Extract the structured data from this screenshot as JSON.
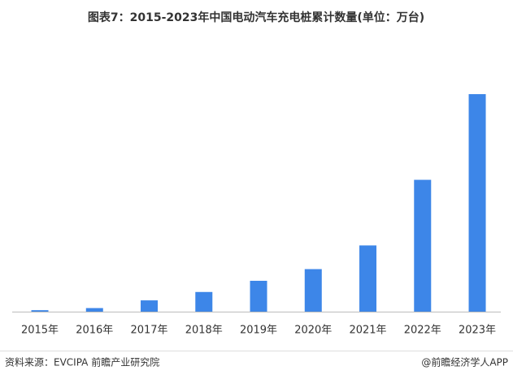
{
  "chart_data": {
    "type": "bar",
    "title": "图表7：2015-2023年中国电动汽车充电桩累计数量(单位：万台)",
    "categories": [
      "2015年",
      "2016年",
      "2017年",
      "2018年",
      "2019年",
      "2020年",
      "2021年",
      "2022年",
      "2023年"
    ],
    "values": [
      5.8,
      14.1,
      44.6,
      77.7,
      121.9,
      168.1,
      261.7,
      521,
      859.6
    ],
    "color": "#3d86e8",
    "source": "资料来源：EVCIPA 前瞻产业研究院",
    "credit": "@前瞻经济学人APP"
  }
}
